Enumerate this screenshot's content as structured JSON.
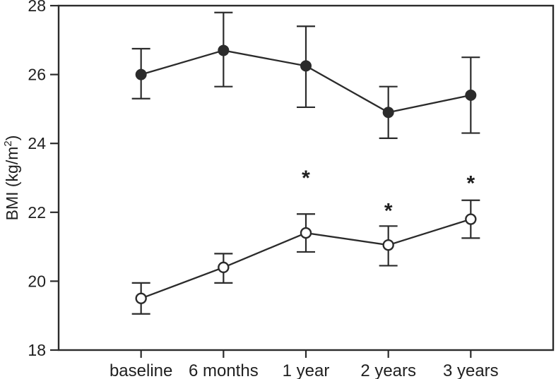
{
  "figure": {
    "kind": "scientific-line-plot-with-error-bars",
    "background_color": "#ffffff",
    "line_color": "#2b2b2b",
    "text_color": "#1f1f1f",
    "open_marker_fill": "#ffffff"
  },
  "chart_data": {
    "type": "line",
    "title": "",
    "xlabel": "",
    "ylabel": "BMI (kg/m²)",
    "ylabel_parts": {
      "prefix": "BMI (kg/m",
      "superscript": "2",
      "suffix": ")"
    },
    "categories": [
      "baseline",
      "6 months",
      "1 year",
      "2 years",
      "3 years"
    ],
    "ylim": [
      18,
      28
    ],
    "yticks": [
      "18",
      "20",
      "22",
      "24",
      "26",
      "28"
    ],
    "grid": false,
    "legend": null,
    "frame": "full-box",
    "series": [
      {
        "name": "filled-circles",
        "marker": "filled-circle",
        "values": [
          26.0,
          26.7,
          26.25,
          24.9,
          25.4
        ],
        "error_low": [
          25.3,
          25.65,
          25.05,
          24.15,
          24.3
        ],
        "error_high": [
          26.75,
          27.8,
          27.4,
          25.65,
          26.5
        ]
      },
      {
        "name": "open-circles",
        "marker": "open-circle",
        "values": [
          19.5,
          20.4,
          21.4,
          21.05,
          21.8
        ],
        "error_low": [
          19.05,
          19.95,
          20.85,
          20.45,
          21.25
        ],
        "error_high": [
          19.95,
          20.8,
          21.95,
          21.6,
          22.35
        ]
      }
    ],
    "annotations": [
      {
        "text": "*",
        "category_index": 2,
        "y": 23.0
      },
      {
        "text": "*",
        "category_index": 3,
        "y": 22.05
      },
      {
        "text": "*",
        "category_index": 4,
        "y": 22.85
      }
    ]
  }
}
